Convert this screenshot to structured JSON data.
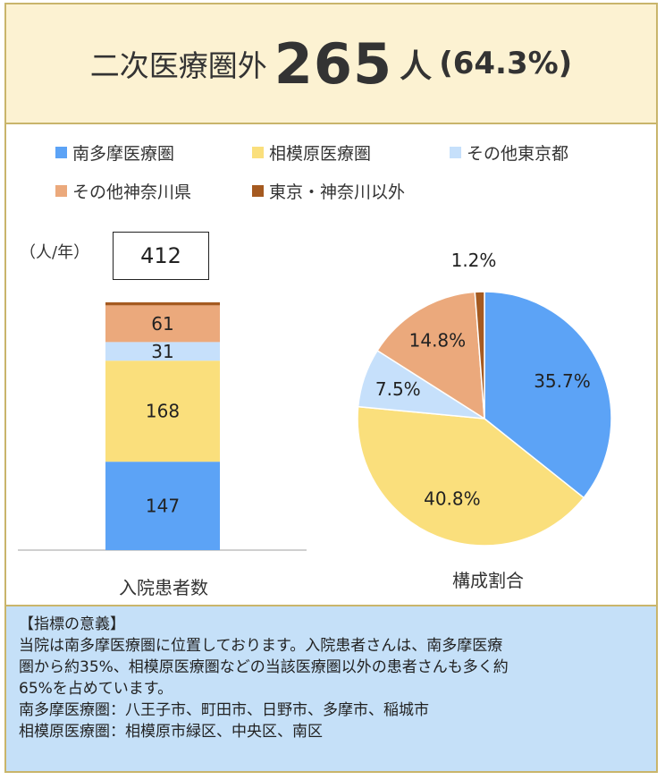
{
  "header": {
    "label": "二次医療圏外",
    "count": "265",
    "unit": "人",
    "percent": "(64.3%)"
  },
  "legend": [
    {
      "label": "南多摩医療圏",
      "color": "#5ca3f6"
    },
    {
      "label": "相模原医療圏",
      "color": "#fadf7c"
    },
    {
      "label": "その他東京都",
      "color": "#c6e0fb"
    },
    {
      "label": "その他神奈川県",
      "color": "#eba97c"
    },
    {
      "label": "東京・神奈川以外",
      "color": "#a55a20"
    }
  ],
  "unit_label": "（人/年）",
  "total": "412",
  "chart_data": [
    {
      "type": "bar",
      "stacked": true,
      "categories": [
        "入院患者数"
      ],
      "series": [
        {
          "name": "南多摩医療圏",
          "values": [
            147
          ],
          "color": "#5ca3f6"
        },
        {
          "name": "相模原医療圏",
          "values": [
            168
          ],
          "color": "#fadf7c"
        },
        {
          "name": "その他東京都",
          "values": [
            31
          ],
          "color": "#c6e0fb"
        },
        {
          "name": "その他神奈川県",
          "values": [
            61
          ],
          "color": "#eba97c"
        },
        {
          "name": "東京・神奈川以外",
          "values": [
            5
          ],
          "color": "#a55a20"
        }
      ],
      "data_labels": [
        "147",
        "168",
        "31",
        "61",
        ""
      ],
      "total": 412,
      "xlabel": "入院患者数",
      "ylabel": "（人/年）",
      "grid": false
    },
    {
      "type": "pie",
      "labels": [
        "南多摩医療圏",
        "相模原医療圏",
        "その他東京都",
        "その他神奈川県",
        "東京・神奈川以外"
      ],
      "values": [
        35.7,
        40.8,
        7.5,
        14.8,
        1.2
      ],
      "value_labels": [
        "35.7%",
        "40.8%",
        "7.5%",
        "14.8%",
        "1.2%"
      ],
      "colors": [
        "#5ca3f6",
        "#fadf7c",
        "#c6e0fb",
        "#eba97c",
        "#a55a20"
      ],
      "start": "12 o'clock",
      "direction": "clockwise",
      "xlabel": "構成割合"
    }
  ],
  "notes": {
    "title": "【指標の意義】",
    "lines": [
      "当院は南多摩医療圏に位置しております。入院患者さんは、南多摩医療",
      "圏から約35%、相模原医療圏などの当該医療圏以外の患者さんも多く約",
      "65%を占めています。",
      "南多摩医療圏：八王子市、町田市、日野市、多摩市、稲城市",
      "相模原医療圏：相模原市緑区、中央区、南区"
    ]
  }
}
